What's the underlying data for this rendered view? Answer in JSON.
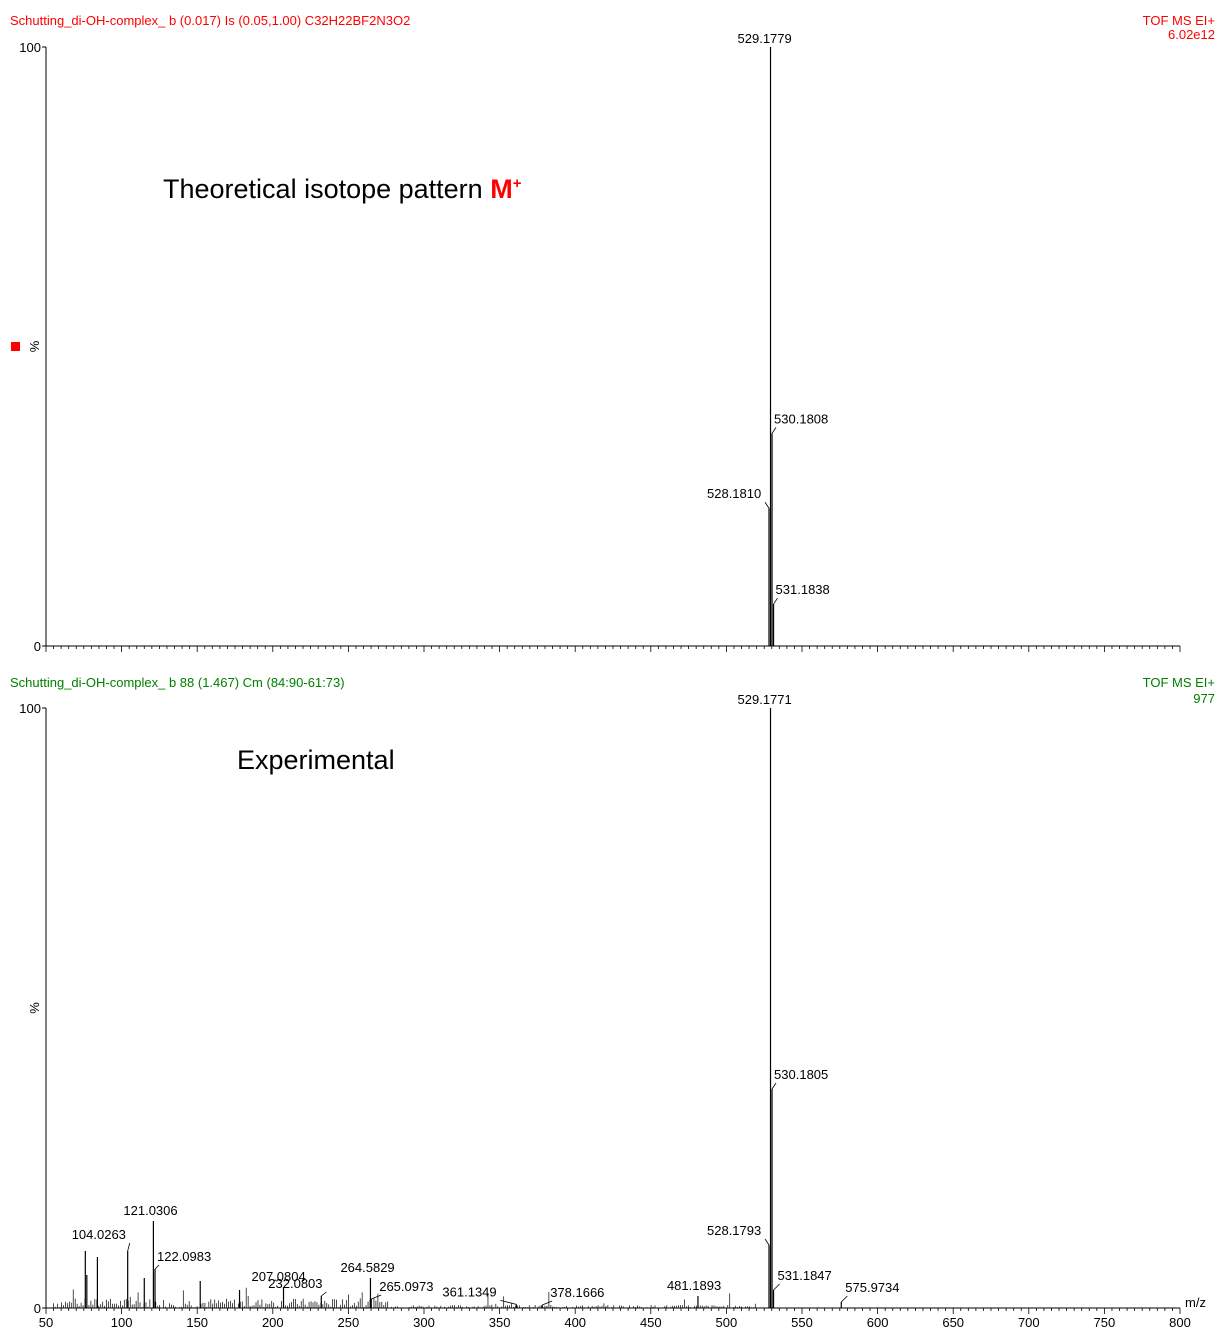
{
  "colors": {
    "theoretical": "#ff0000",
    "experimental": "#008000",
    "axis": "#000000"
  },
  "chart_data": [
    {
      "type": "bar",
      "panel": "theoretical",
      "header_left": "Schutting_di-OH-complex_ b  (0.017) Is (0.05,1.00) C32H22BF2N3O2",
      "header_right_1": "TOF MS EI+",
      "header_right_2": "6.02e12",
      "annotation_text": "Theoretical isotope pattern ",
      "annotation_ion": "M",
      "annotation_charge": "+",
      "ylabel": "%",
      "y_ticks": [
        "100",
        "0"
      ],
      "ylim": [
        0,
        100
      ],
      "xlim": [
        50,
        800
      ],
      "peaks": [
        {
          "mz": 528.181,
          "intensity": 23,
          "label": "528.1810"
        },
        {
          "mz": 529.1779,
          "intensity": 100,
          "label": "529.1779"
        },
        {
          "mz": 530.1808,
          "intensity": 35.5,
          "label": "530.1808"
        },
        {
          "mz": 531.1838,
          "intensity": 7,
          "label": "531.1838"
        }
      ]
    },
    {
      "type": "bar",
      "panel": "experimental",
      "header_left": "Schutting_di-OH-complex_ b 88 (1.467) Cm (84:90-61:73)",
      "header_right_1": "TOF MS EI+",
      "header_right_2": "977",
      "annotation_text": "Experimental",
      "ylabel": "%",
      "y_ticks": [
        "100",
        "0"
      ],
      "xlabel": "m/z",
      "ylim": [
        0,
        100
      ],
      "xlim": [
        50,
        800
      ],
      "x_ticks": [
        50,
        100,
        150,
        200,
        250,
        300,
        350,
        400,
        450,
        500,
        550,
        600,
        650,
        700,
        750,
        800
      ],
      "peaks": [
        {
          "mz": 76.0,
          "intensity": 9.5
        },
        {
          "mz": 77.0,
          "intensity": 5.5
        },
        {
          "mz": 84.0,
          "intensity": 8.5
        },
        {
          "mz": 104.0263,
          "intensity": 9.5,
          "label": "104.0263"
        },
        {
          "mz": 115.0,
          "intensity": 5.0
        },
        {
          "mz": 121.0306,
          "intensity": 14.5,
          "label": "121.0306"
        },
        {
          "mz": 122.0983,
          "intensity": 6.5,
          "label": "122.0983"
        },
        {
          "mz": 152.0,
          "intensity": 4.5
        },
        {
          "mz": 178.0,
          "intensity": 3.0
        },
        {
          "mz": 207.0804,
          "intensity": 3.5,
          "label": "207.0804"
        },
        {
          "mz": 232.0803,
          "intensity": 2.0,
          "label": "232.0803"
        },
        {
          "mz": 264.5829,
          "intensity": 5.0,
          "label": "264.5829"
        },
        {
          "mz": 265.0973,
          "intensity": 1.5,
          "label": "265.0973"
        },
        {
          "mz": 361.1349,
          "intensity": 0.6,
          "label": "361.1349"
        },
        {
          "mz": 378.1666,
          "intensity": 0.5,
          "label": "378.1666"
        },
        {
          "mz": 481.1893,
          "intensity": 2.0,
          "label": "481.1893"
        },
        {
          "mz": 528.1793,
          "intensity": 10.5,
          "label": "528.1793"
        },
        {
          "mz": 529.1771,
          "intensity": 100,
          "label": "529.1771"
        },
        {
          "mz": 530.1805,
          "intensity": 36.5,
          "label": "530.1805"
        },
        {
          "mz": 531.1847,
          "intensity": 3.0,
          "label": "531.1847"
        },
        {
          "mz": 575.9734,
          "intensity": 1.0,
          "label": "575.9734"
        }
      ]
    }
  ]
}
